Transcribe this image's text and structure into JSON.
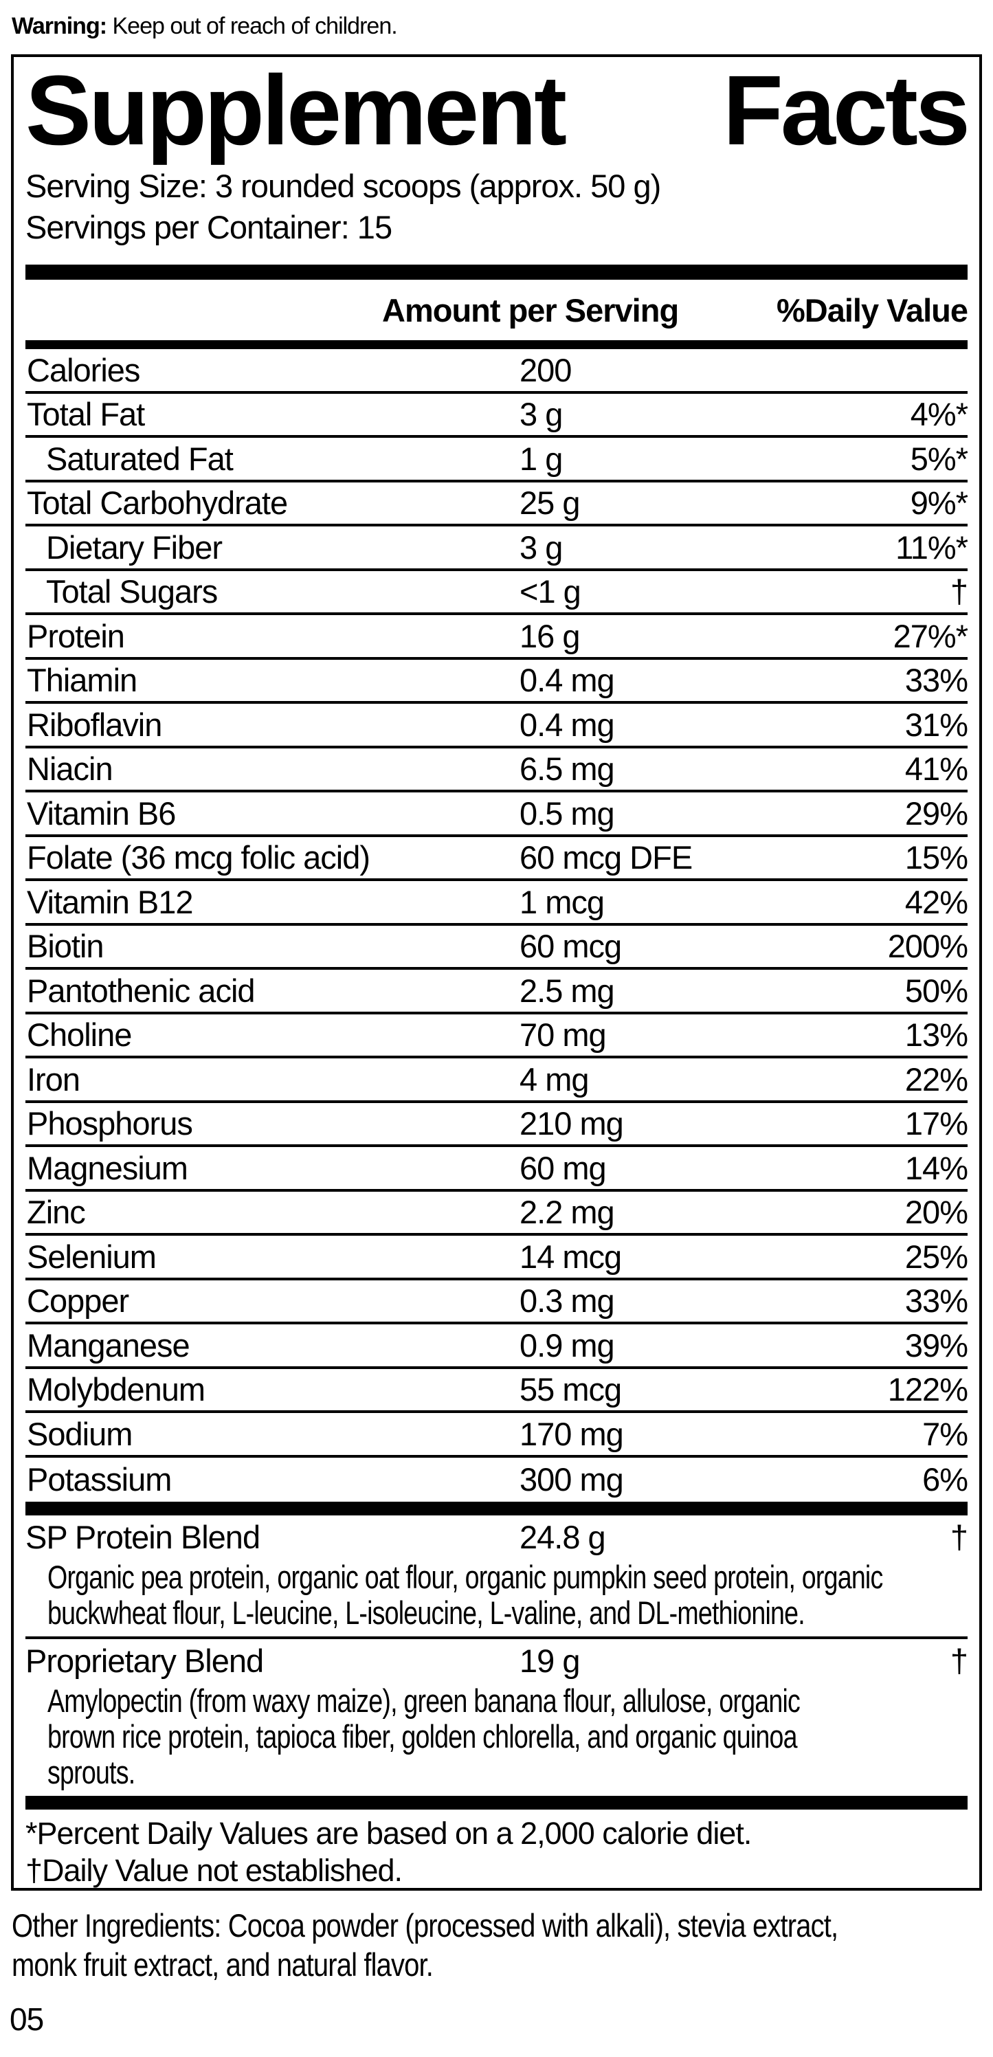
{
  "warning": {
    "label": "Warning:",
    "text": " Keep out of reach of children."
  },
  "panel": {
    "title_word1": "Supplement",
    "title_word2": "Facts",
    "serving_size": "Serving Size: 3 rounded scoops (approx. 50 g)",
    "servings_per_container": "Servings per Container: 15",
    "columns": {
      "amount": "Amount per Serving",
      "daily_value": "%Daily Value"
    },
    "rows": [
      {
        "label": "Calories",
        "amount": "200",
        "dv": "",
        "indent": false
      },
      {
        "label": "Total Fat",
        "amount": "3 g",
        "dv": "4%*",
        "indent": false
      },
      {
        "label": "Saturated Fat",
        "amount": "1 g",
        "dv": "5%*",
        "indent": true
      },
      {
        "label": "Total Carbohydrate",
        "amount": "25 g",
        "dv": "9%*",
        "indent": false
      },
      {
        "label": "Dietary Fiber",
        "amount": "3 g",
        "dv": "11%*",
        "indent": true
      },
      {
        "label": "Total Sugars",
        "amount": "<1 g",
        "dv": "†",
        "indent": true
      },
      {
        "label": "Protein",
        "amount": "16 g",
        "dv": "27%*",
        "indent": false
      },
      {
        "label": "Thiamin",
        "amount": "0.4 mg",
        "dv": "33%",
        "indent": false
      },
      {
        "label": "Riboflavin",
        "amount": "0.4 mg",
        "dv": "31%",
        "indent": false
      },
      {
        "label": "Niacin",
        "amount": "6.5 mg",
        "dv": "41%",
        "indent": false
      },
      {
        "label": "Vitamin B6",
        "amount": "0.5 mg",
        "dv": "29%",
        "indent": false
      },
      {
        "label": "Folate (36 mcg folic acid)",
        "amount": "60 mcg DFE",
        "dv": "15%",
        "indent": false
      },
      {
        "label": "Vitamin B12",
        "amount": "1 mcg",
        "dv": "42%",
        "indent": false
      },
      {
        "label": "Biotin",
        "amount": "60 mcg",
        "dv": "200%",
        "indent": false
      },
      {
        "label": "Pantothenic acid",
        "amount": "2.5 mg",
        "dv": "50%",
        "indent": false
      },
      {
        "label": "Choline",
        "amount": "70 mg",
        "dv": "13%",
        "indent": false
      },
      {
        "label": "Iron",
        "amount": "4 mg",
        "dv": "22%",
        "indent": false
      },
      {
        "label": "Phosphorus",
        "amount": "210 mg",
        "dv": "17%",
        "indent": false
      },
      {
        "label": "Magnesium",
        "amount": "60 mg",
        "dv": "14%",
        "indent": false
      },
      {
        "label": "Zinc",
        "amount": "2.2 mg",
        "dv": "20%",
        "indent": false
      },
      {
        "label": "Selenium",
        "amount": "14 mcg",
        "dv": "25%",
        "indent": false
      },
      {
        "label": "Copper",
        "amount": "0.3 mg",
        "dv": "33%",
        "indent": false
      },
      {
        "label": "Manganese",
        "amount": "0.9 mg",
        "dv": "39%",
        "indent": false
      },
      {
        "label": "Molybdenum",
        "amount": "55 mcg",
        "dv": "122%",
        "indent": false
      },
      {
        "label": "Sodium",
        "amount": "170 mg",
        "dv": "7%",
        "indent": false
      },
      {
        "label": "Potassium",
        "amount": "300 mg",
        "dv": "6%",
        "indent": false
      }
    ],
    "blends": [
      {
        "label": "SP Protein Blend",
        "amount": "24.8 g",
        "dv": "†",
        "desc_lines": [
          "Organic pea protein, organic oat flour, organic pumpkin seed protein, organic",
          "buckwheat flour, L-leucine, L-isoleucine, L-valine, and DL-methionine."
        ]
      },
      {
        "label": "Proprietary Blend",
        "amount": "19 g",
        "dv": "†",
        "desc_lines": [
          "Amylopectin (from waxy maize), green banana flour, allulose, organic",
          "brown rice protein, tapioca fiber, golden chlorella, and organic quinoa",
          "sprouts."
        ]
      }
    ],
    "footnotes": [
      "*Percent Daily Values are based on a 2,000 calorie diet.",
      "†Daily Value not established."
    ]
  },
  "other_ingredients_lines": [
    "Other Ingredients: Cocoa powder (processed with alkali), stevia extract,",
    "monk fruit extract, and natural flavor."
  ],
  "page_number": "05",
  "colors": {
    "ink": "#000000",
    "paper": "#ffffff"
  }
}
